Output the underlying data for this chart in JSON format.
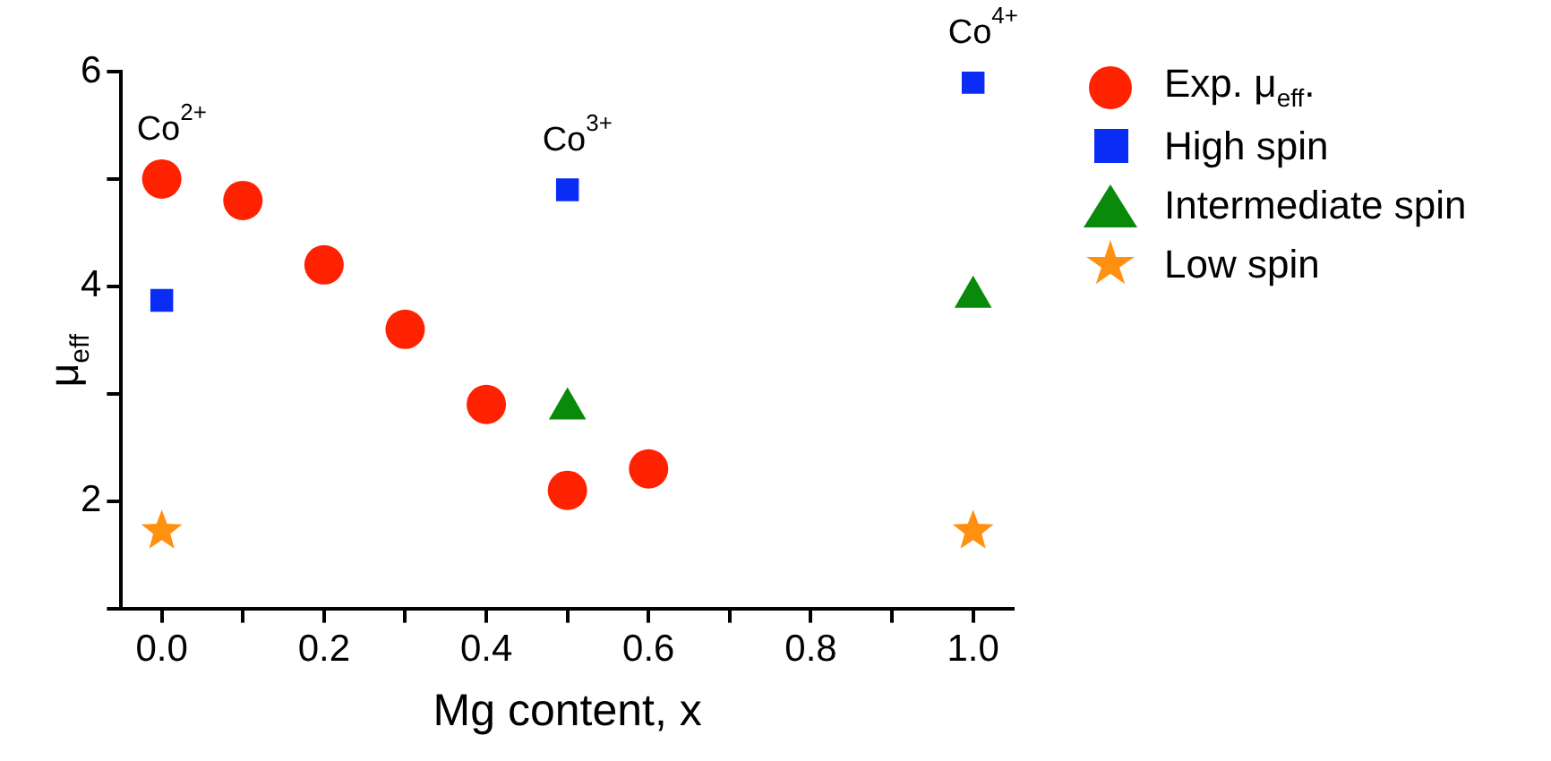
{
  "chart_data": {
    "type": "scatter",
    "xlabel": "Mg content, x",
    "ylabel": "μ$_{eff}$",
    "xlim": [
      -0.05,
      1.05
    ],
    "xticks": [
      {
        "value": 0,
        "label": "0.0"
      },
      {
        "value": 0.1,
        "label": null
      },
      {
        "value": 0.2,
        "label": "0.2"
      },
      {
        "value": 0.3,
        "label": null
      },
      {
        "value": 0.4,
        "label": "0.4"
      },
      {
        "value": 0.5,
        "label": null
      },
      {
        "value": 0.6,
        "label": "0.6"
      },
      {
        "value": 0.7,
        "label": null
      },
      {
        "value": 0.8,
        "label": "0.8"
      },
      {
        "value": 0.9,
        "label": null
      },
      {
        "value": 1,
        "label": "1.0"
      }
    ],
    "ylim": [
      1,
      6
    ],
    "yticks": [
      {
        "value": 1,
        "label": null
      },
      2,
      {
        "value": 3,
        "label": null
      },
      4,
      {
        "value": 5,
        "label": null
      },
      6
    ],
    "grid": false,
    "legend": "top right",
    "series": [
      {
        "name": "Exp. μ$_{eff}$.",
        "color": "#ff2200",
        "marker": "circle",
        "x": [
          0,
          0.1,
          0.2,
          0.3,
          0.4,
          0.5,
          0.6
        ],
        "values": [
          5.0,
          4.8,
          4.2,
          3.6,
          2.9,
          2.1,
          2.3
        ]
      },
      {
        "name": "High spin",
        "color": "#0a2cf5",
        "marker": "square",
        "x": [
          0,
          0.5,
          1
        ],
        "values": [
          3.87,
          4.9,
          5.9
        ]
      },
      {
        "name": "Intermediate spin",
        "color": "#0a8a0a",
        "marker": "triangle",
        "x": [
          0.5,
          1
        ],
        "values": [
          2.86,
          3.9
        ]
      },
      {
        "name": "Low spin",
        "color": "#ff9010",
        "marker": "star",
        "x": [
          0,
          1
        ],
        "values": [
          1.72,
          1.72
        ]
      }
    ],
    "annotations": [
      {
        "text": "Co$^{2+}$",
        "x": 0,
        "y": 5.0
      },
      {
        "text": "Co$^{3+}$",
        "x": 0.5,
        "y": 4.9
      },
      {
        "text": "Co$^{4+}$",
        "x": 1,
        "y": 5.9
      }
    ]
  }
}
